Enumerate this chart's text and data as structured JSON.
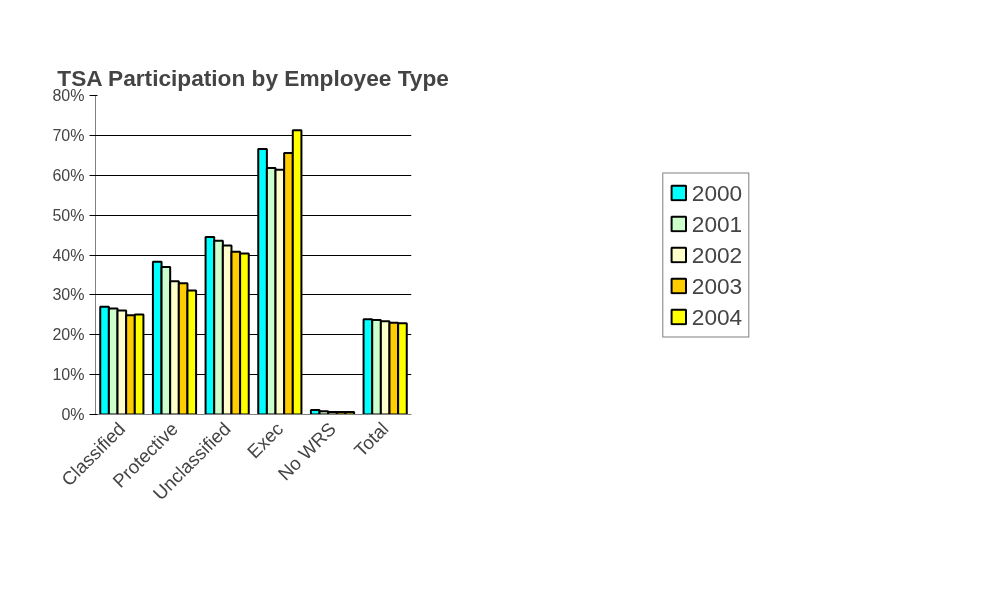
{
  "chart_data": {
    "type": "bar",
    "title": "TSA Participation by Employee Type",
    "categories": [
      "Classified",
      "Protective",
      "Unclassified",
      "Exec",
      "No WRS",
      "Total"
    ],
    "series": [
      {
        "name": "2000",
        "color": "#00ffff",
        "values": [
          27.0,
          38.3,
          44.5,
          66.6,
          1.1,
          23.9
        ]
      },
      {
        "name": "2001",
        "color": "#ccffcc",
        "values": [
          26.6,
          37.0,
          43.6,
          61.8,
          0.8,
          23.7
        ]
      },
      {
        "name": "2002",
        "color": "#ffffcc",
        "values": [
          26.1,
          33.4,
          42.4,
          61.4,
          0.6,
          23.4
        ]
      },
      {
        "name": "2003",
        "color": "#ffcc00",
        "values": [
          24.9,
          32.9,
          40.8,
          65.6,
          0.6,
          23.0
        ]
      },
      {
        "name": "2004",
        "color": "#ffff00",
        "values": [
          25.1,
          31.1,
          40.4,
          71.3,
          0.6,
          22.9
        ]
      }
    ],
    "ylim": [
      0,
      80
    ],
    "yticks": [
      {
        "value": 0,
        "label": "0%"
      },
      {
        "value": 10,
        "label": "10%"
      },
      {
        "value": 20,
        "label": "20%"
      },
      {
        "value": 30,
        "label": "30%"
      },
      {
        "value": 40,
        "label": "40%"
      },
      {
        "value": 50,
        "label": "50%"
      },
      {
        "value": 60,
        "label": "60%"
      },
      {
        "value": 70,
        "label": "70%"
      },
      {
        "value": 80,
        "label": "80%"
      }
    ],
    "grid": "y",
    "legend": "right"
  }
}
